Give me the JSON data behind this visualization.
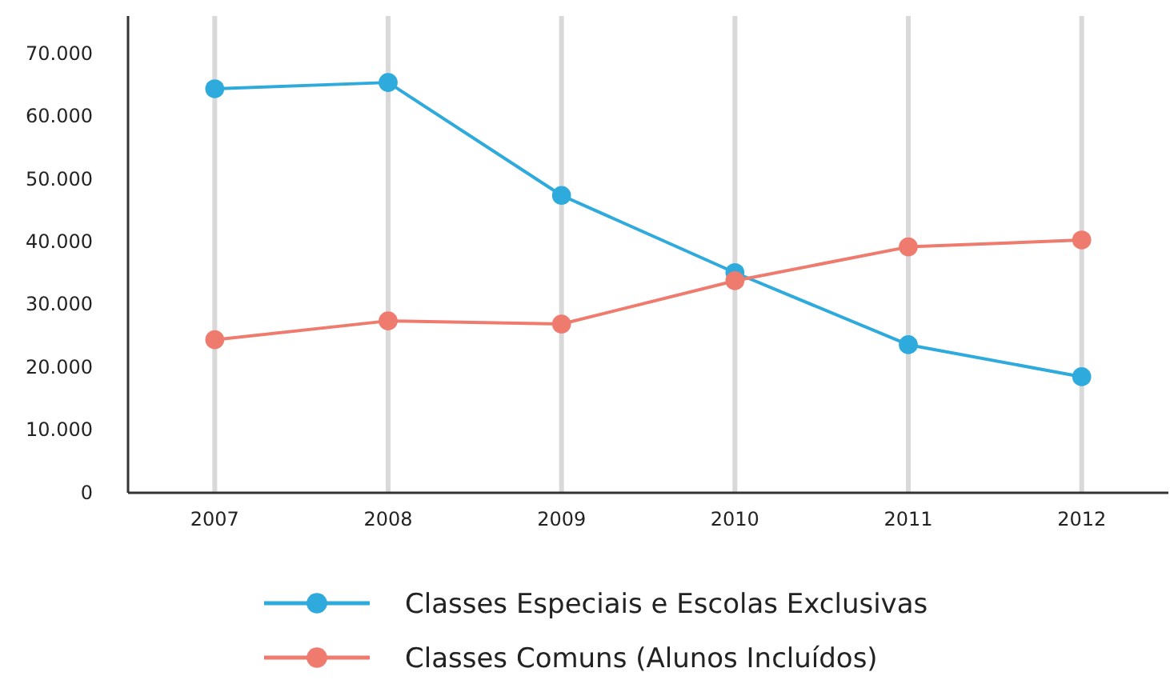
{
  "chart_data": {
    "type": "line",
    "categories": [
      "2007",
      "2008",
      "2009",
      "2010",
      "2011",
      "2012"
    ],
    "series": [
      {
        "name": "Classes Especiais e Escolas Exclusivas",
        "color": "#2eaadc",
        "values": [
          64400,
          65400,
          47400,
          35100,
          23600,
          18500
        ]
      },
      {
        "name": "Classes Comuns (Alunos Incluídos)",
        "color": "#ee7b6e",
        "values": [
          24400,
          27400,
          26900,
          33800,
          39200,
          40300
        ]
      }
    ],
    "ylim": [
      0,
      76000
    ],
    "yticks": [
      0,
      {
        "value": 10000,
        "label": "10.000"
      },
      {
        "value": 20000,
        "label": "20.000"
      },
      {
        "value": 30000,
        "label": "30.000"
      },
      {
        "value": 40000,
        "label": "40.000"
      },
      {
        "value": 50000,
        "label": "50.000"
      },
      {
        "value": 60000,
        "label": "60.000"
      },
      {
        "value": 70000,
        "label": "70.000"
      }
    ],
    "grid": "x",
    "legend": "bottom",
    "marker": "circle",
    "line_style": "solid"
  }
}
